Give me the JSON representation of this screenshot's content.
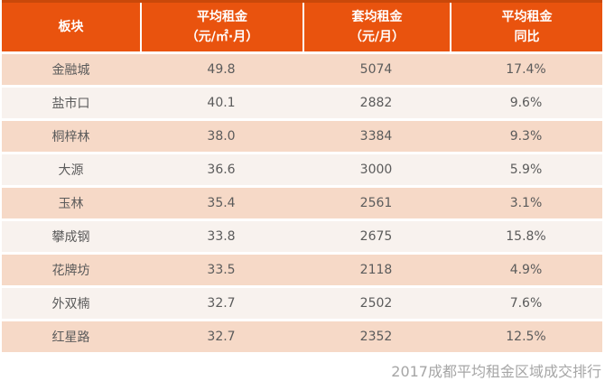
{
  "colors": {
    "header_bg": "#E9530E",
    "header_top_border": "#C9480A",
    "header_text": "#FFFFFF",
    "row_odd_bg": "#F6D9C7",
    "row_even_bg": "#F8F2EE",
    "row_gap": "#FFFFFF",
    "cell_text": "#5B5B5B",
    "footer_text": "#A6A6A6"
  },
  "chart_data": {
    "type": "table",
    "title": "2017成都平均租金区域成交排行",
    "legend_position": "none",
    "columns": [
      {
        "line1": "板块",
        "line2": ""
      },
      {
        "line1": "平均租金",
        "line2": "（元/㎡·月）"
      },
      {
        "line1": "套均租金",
        "line2": "（元/月）"
      },
      {
        "line1": "平均租金",
        "line2": "同比"
      }
    ],
    "rows": [
      {
        "district": "金融城",
        "avg_rent": "49.8",
        "unit_rent": "5074",
        "yoy": "17.4%"
      },
      {
        "district": "盐市口",
        "avg_rent": "40.1",
        "unit_rent": "2882",
        "yoy": "9.6%"
      },
      {
        "district": "桐梓林",
        "avg_rent": "38.0",
        "unit_rent": "3384",
        "yoy": "9.3%"
      },
      {
        "district": "大源",
        "avg_rent": "36.6",
        "unit_rent": "3000",
        "yoy": "5.9%"
      },
      {
        "district": "玉林",
        "avg_rent": "35.4",
        "unit_rent": "2561",
        "yoy": "3.1%"
      },
      {
        "district": "攀成钢",
        "avg_rent": "33.8",
        "unit_rent": "2675",
        "yoy": "15.8%"
      },
      {
        "district": "花牌坊",
        "avg_rent": "33.5",
        "unit_rent": "2118",
        "yoy": "4.9%"
      },
      {
        "district": "外双楠",
        "avg_rent": "32.7",
        "unit_rent": "2502",
        "yoy": "7.6%"
      },
      {
        "district": "红星路",
        "avg_rent": "32.7",
        "unit_rent": "2352",
        "yoy": "12.5%"
      }
    ]
  }
}
